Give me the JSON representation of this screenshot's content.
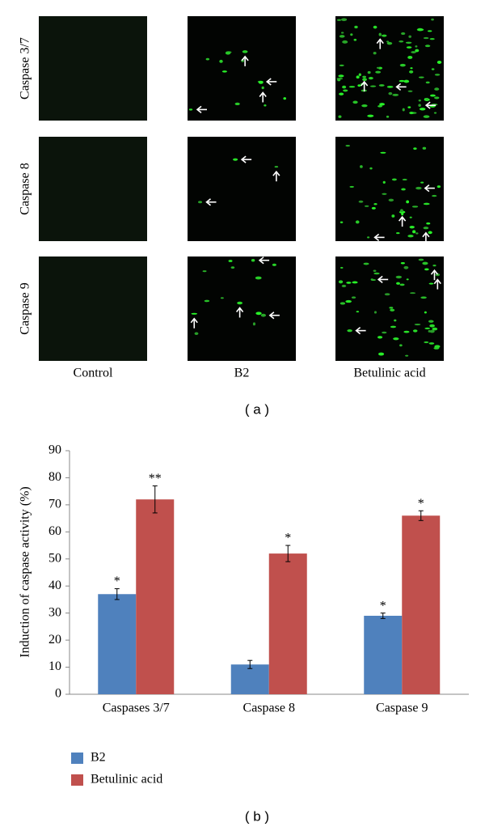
{
  "figure_a": {
    "row_labels": [
      "Caspase 3/7",
      "Caspase 8",
      "Caspase 9"
    ],
    "column_labels": [
      "Control",
      "B2",
      "Betulinic acid"
    ],
    "caption": "( a )"
  },
  "chart_data": {
    "type": "bar",
    "ylabel": "Induction of caspase activity (%)",
    "categories": [
      "Caspases 3/7",
      "Caspase 8",
      "Caspase 9"
    ],
    "series": [
      {
        "name": "B2",
        "color": "#4f81bd",
        "values": [
          37,
          11,
          29
        ],
        "errors": [
          2,
          1.5,
          1
        ],
        "significance": [
          "*",
          null,
          "*"
        ]
      },
      {
        "name": "Betulinic acid",
        "color": "#c0504d",
        "values": [
          72,
          52,
          66
        ],
        "errors": [
          5,
          3,
          1.8
        ],
        "significance": [
          "**",
          "*",
          "*"
        ]
      }
    ],
    "ylim": [
      0,
      90
    ],
    "yticks": [
      0,
      10,
      20,
      30,
      40,
      50,
      60,
      70,
      80,
      90
    ],
    "grid": false,
    "legend": "bottom-left",
    "caption": "( b )"
  }
}
